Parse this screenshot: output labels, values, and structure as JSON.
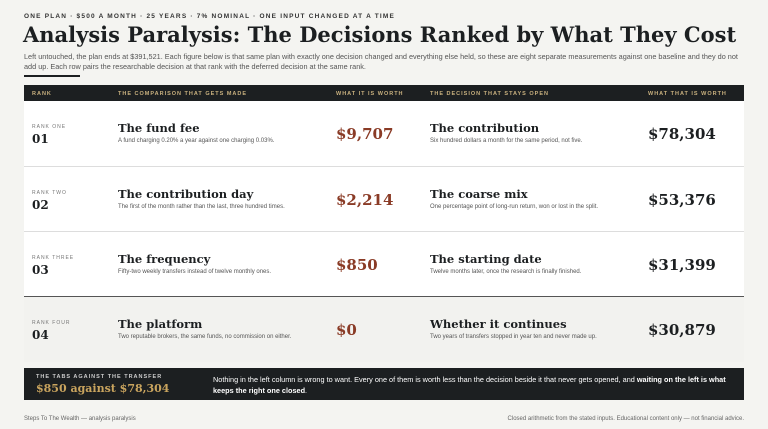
{
  "header": {
    "kicker": "ONE PLAN · $500 A MONTH · 25 YEARS · 7% NOMINAL · ONE INPUT CHANGED AT A TIME",
    "title": "Analysis Paralysis: The Decisions Ranked by What They Cost",
    "intro": "Left untouched, the plan ends at $391,521. Each figure below is that same plan with exactly one decision changed and everything else held, so these are eight separate measurements against one baseline and they do not add up. Each row pairs the researchable decision at that rank with the deferred decision at the same rank."
  },
  "table": {
    "columns": [
      "RANK",
      "THE COMPARISON THAT GETS MADE",
      "WHAT IT IS WORTH",
      "THE DECISION THAT STAYS OPEN",
      "WHAT THAT IS WORTH"
    ],
    "rows": [
      {
        "rank": "RANK ONE",
        "number": "01",
        "comparison": "The fund fee",
        "comparison_note": "A fund charging 0.20% a year against one charging 0.03%.",
        "worth": "$9,707",
        "decision": "The contribution",
        "decision_note": "Six hundred dollars a month for the same period, not five.",
        "decision_worth": "$78,304"
      },
      {
        "rank": "RANK TWO",
        "number": "02",
        "comparison": "The contribution day",
        "comparison_note": "The first of the month rather than the last, three hundred times.",
        "worth": "$2,214",
        "decision": "The coarse mix",
        "decision_note": "One percentage point of long-run return, won or lost in the split.",
        "decision_worth": "$53,376"
      },
      {
        "rank": "RANK THREE",
        "number": "03",
        "comparison": "The frequency",
        "comparison_note": "Fifty-two weekly transfers instead of twelve monthly ones.",
        "worth": "$850",
        "decision": "The starting date",
        "decision_note": "Twelve months later, once the research is finally finished.",
        "decision_worth": "$31,399"
      },
      {
        "rank": "RANK FOUR",
        "number": "04",
        "comparison": "The platform",
        "comparison_note": "Two reputable brokers, the same funds, no commission on either.",
        "worth": "$0",
        "decision": "Whether it continues",
        "decision_note": "Two years of transfers stopped in year ten and never made up.",
        "decision_worth": "$30,879"
      }
    ]
  },
  "summary": {
    "label": "THE TABS AGAINST THE TRANSFER",
    "headline": "$850 against $78,304",
    "text": "Nothing in the left column is wrong to want. Every one of them is worth less than the decision beside it that never gets opened, and ",
    "emphasis": "waiting on the left is what keeps the right one closed",
    "end": "."
  },
  "footer": {
    "left": "Steps To The Wealth — analysis paralysis",
    "right": "Closed arithmetic from the stated inputs. Educational content only — not financial advice."
  }
}
